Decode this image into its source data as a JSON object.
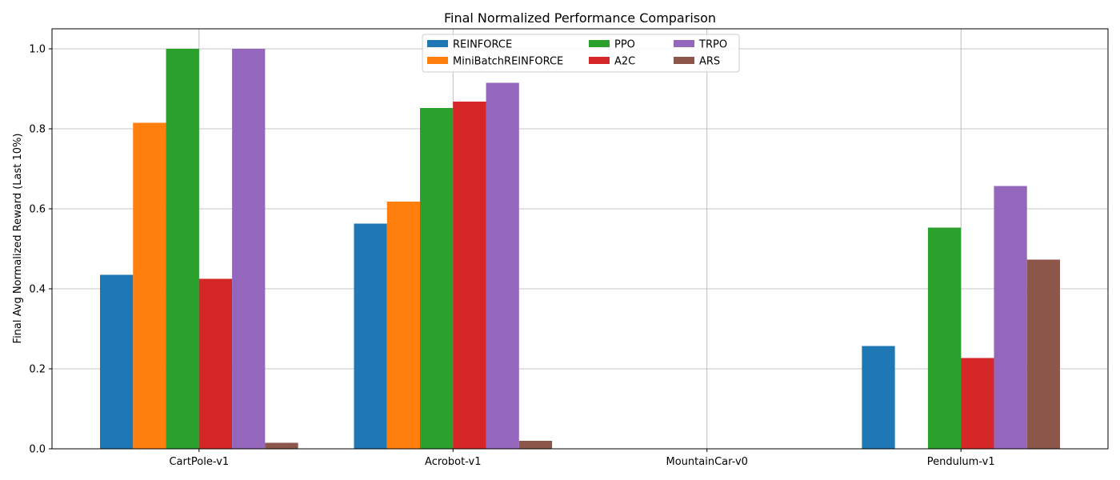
{
  "chart_data": {
    "type": "bar",
    "title": "Final Normalized Performance Comparison",
    "xlabel": "",
    "ylabel": "Final Avg Normalized Reward (Last 10%)",
    "categories": [
      "CartPole-v1",
      "Acrobot-v1",
      "MountainCar-v0",
      "Pendulum-v1"
    ],
    "ylim": [
      0,
      1.05
    ],
    "yticks": [
      0.0,
      0.2,
      0.4,
      0.6,
      0.8,
      1.0
    ],
    "ytick_labels": [
      "0.0",
      "0.2",
      "0.4",
      "0.6",
      "0.8",
      "1.0"
    ],
    "grid": true,
    "legend_placement": "top-center",
    "series": [
      {
        "name": "REINFORCE",
        "color": "#1f77b4",
        "values": [
          0.435,
          0.563,
          0.0,
          0.257
        ]
      },
      {
        "name": "MiniBatchREINFORCE",
        "color": "#ff7f0e",
        "values": [
          0.815,
          0.618,
          0.0,
          0.0
        ]
      },
      {
        "name": "PPO",
        "color": "#2ca02c",
        "values": [
          1.0,
          0.852,
          0.0,
          0.553
        ]
      },
      {
        "name": "A2C",
        "color": "#d62728",
        "values": [
          0.425,
          0.868,
          0.0,
          0.227
        ]
      },
      {
        "name": "TRPO",
        "color": "#9467bd",
        "values": [
          1.0,
          0.915,
          0.0,
          0.657
        ]
      },
      {
        "name": "ARS",
        "color": "#8c564b",
        "values": [
          0.015,
          0.02,
          0.0,
          0.473
        ]
      }
    ]
  }
}
